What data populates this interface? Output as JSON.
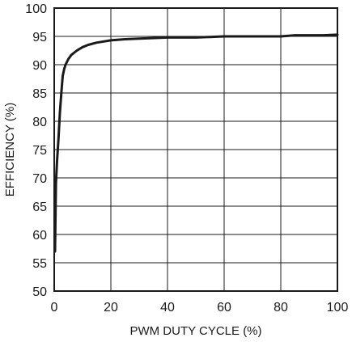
{
  "chart_data": {
    "type": "line",
    "title": "",
    "xlabel": "PWM DUTY CYCLE (%)",
    "ylabel": "EFFICIENCY (%)",
    "xlim": [
      0,
      100
    ],
    "ylim": [
      50,
      100
    ],
    "x_ticks": [
      0,
      20,
      40,
      60,
      80,
      100
    ],
    "y_ticks": [
      50,
      55,
      60,
      65,
      70,
      75,
      80,
      85,
      90,
      95,
      100
    ],
    "grid": true,
    "legend": "none",
    "line_color": "#1a1a1a",
    "series": [
      {
        "x": [
          0.3,
          0.6,
          1.0,
          1.5,
          2.0,
          2.5,
          3.0,
          3.5,
          4.0,
          5.0,
          6.0,
          8.0,
          10.0,
          12.0,
          15.0,
          20.0,
          25.0,
          30.0,
          40.0,
          50.0,
          55.0,
          60.0,
          70.0,
          80.0,
          85.0,
          90.0,
          95.0,
          100.0
        ],
        "y": [
          57.0,
          69.0,
          73.0,
          77.0,
          81.5,
          85.0,
          88.0,
          89.2,
          90.0,
          91.0,
          91.7,
          92.5,
          93.1,
          93.5,
          93.9,
          94.3,
          94.5,
          94.6,
          94.8,
          94.8,
          94.9,
          95.0,
          95.0,
          95.0,
          95.2,
          95.2,
          95.2,
          95.3
        ]
      }
    ]
  }
}
